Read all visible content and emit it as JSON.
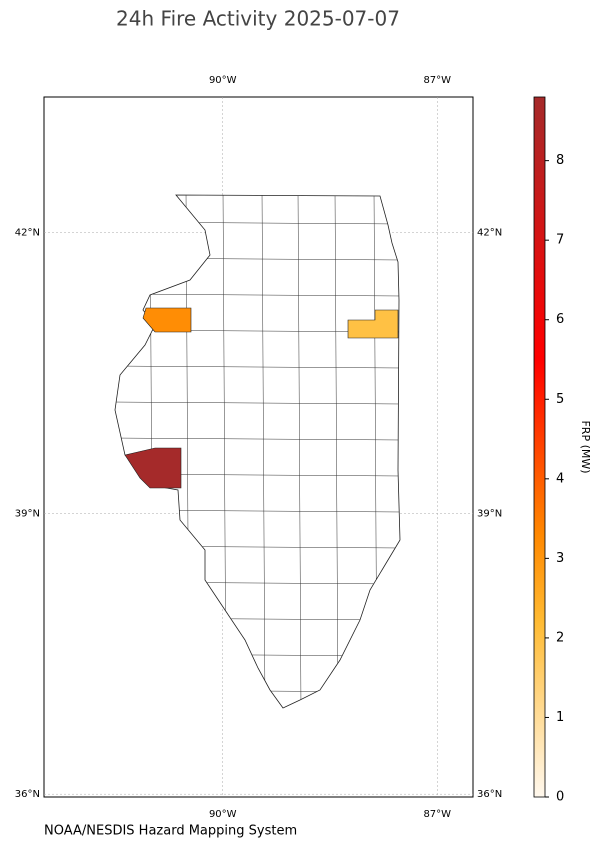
{
  "title": "24h Fire Activity 2025-07-07",
  "credit": "NOAA/NESDIS Hazard Mapping System",
  "map": {
    "lonlim": [
      -92.5,
      -86.5
    ],
    "latlim": [
      35.97,
      43.45
    ],
    "lonticks": [
      {
        "value": -90,
        "label": "90°W"
      },
      {
        "value": -87,
        "label": "87°W"
      }
    ],
    "latticks": [
      {
        "value": 36,
        "label": "36°N"
      },
      {
        "value": 39,
        "label": "39°N"
      },
      {
        "value": 42,
        "label": "42°N"
      }
    ],
    "grid": true
  },
  "colorbar": {
    "label": "FRP (MW)",
    "lim": [
      0,
      8.8
    ],
    "ticks": [
      0,
      1,
      2,
      3,
      4,
      5,
      6,
      7,
      8
    ],
    "stops": [
      [
        0,
        "#fff8ee"
      ],
      [
        2.2,
        "#ffbb33"
      ],
      [
        3.3,
        "#ff8800"
      ],
      [
        5.5,
        "#ff0000"
      ],
      [
        8.8,
        "#a52a2a"
      ]
    ]
  },
  "fires": [
    {
      "value": 3.2
    },
    {
      "value": 2.0
    },
    {
      "value": 8.8
    }
  ]
}
